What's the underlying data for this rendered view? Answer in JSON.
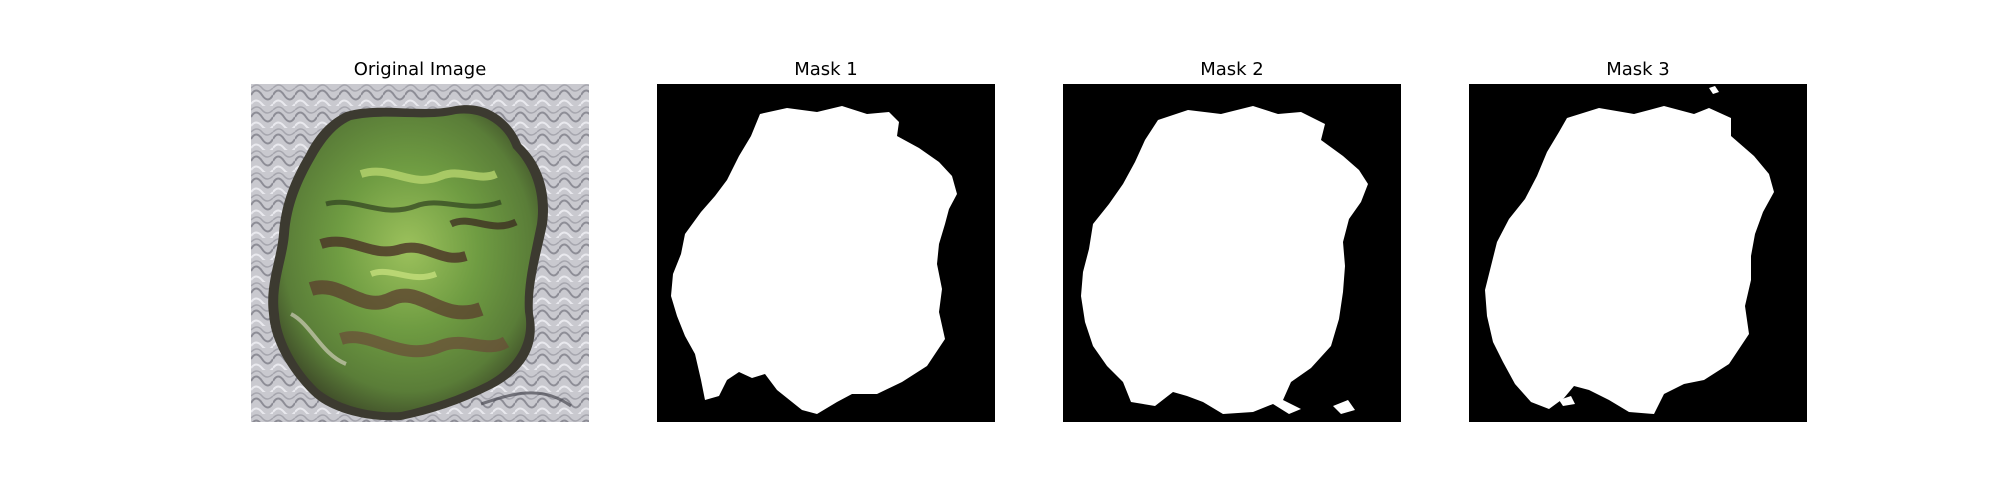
{
  "panels": [
    {
      "id": "original",
      "title": "Original Image"
    },
    {
      "id": "mask1",
      "title": "Mask 1"
    },
    {
      "id": "mask2",
      "title": "Mask 2"
    },
    {
      "id": "mask3",
      "title": "Mask 3"
    }
  ]
}
